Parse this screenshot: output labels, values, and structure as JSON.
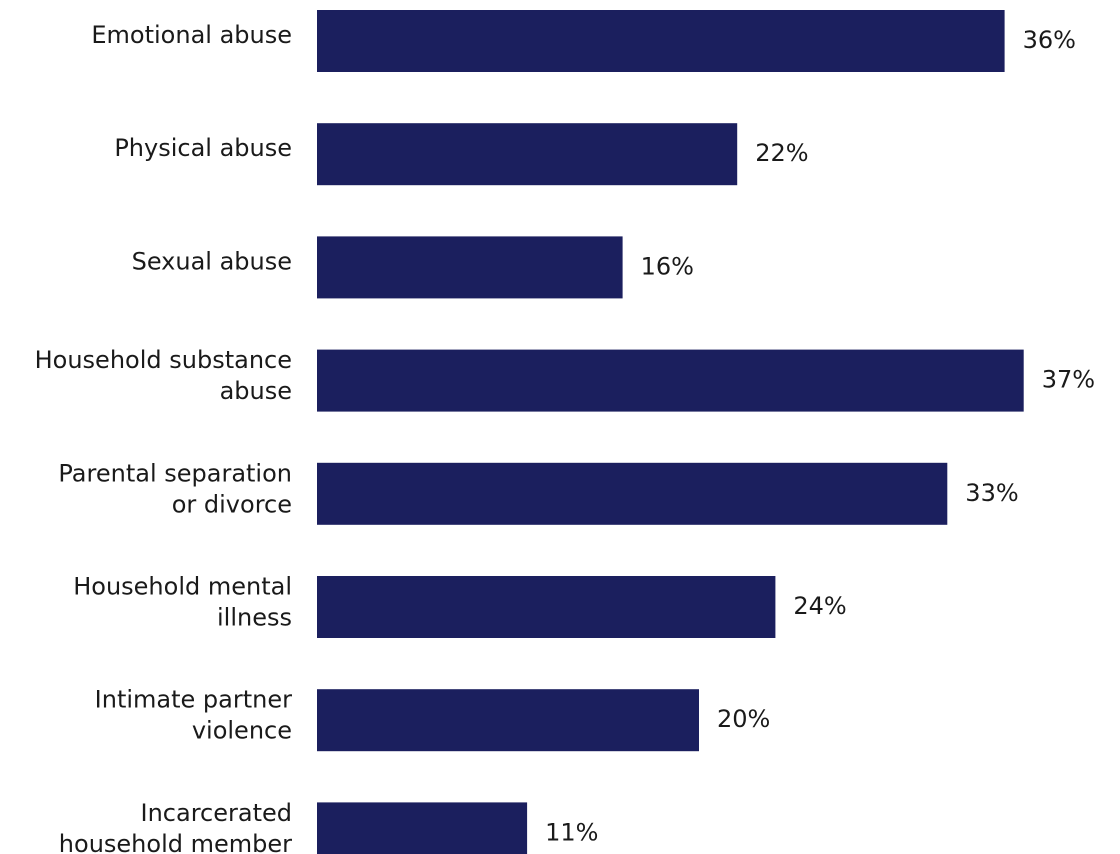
{
  "chart_data": {
    "type": "bar",
    "orientation": "horizontal",
    "categories": [
      [
        "Emotional abuse"
      ],
      [
        "Physical abuse"
      ],
      [
        "Sexual abuse"
      ],
      [
        "Household substance",
        "abuse"
      ],
      [
        "Parental separation",
        "or divorce"
      ],
      [
        "Household mental",
        "illness"
      ],
      [
        "Intimate partner",
        "violence"
      ],
      [
        "Incarcerated",
        "household member"
      ]
    ],
    "values": [
      36,
      22,
      16,
      37,
      33,
      24,
      20,
      11
    ],
    "value_labels": [
      "36%",
      "22%",
      "16%",
      "37%",
      "33%",
      "24%",
      "20%",
      "11%"
    ],
    "bar_color": "#1b1f5e",
    "text_color": "#1a1a1a",
    "title": "",
    "xlabel": "",
    "ylabel": "",
    "grid": false,
    "legend": "none"
  }
}
